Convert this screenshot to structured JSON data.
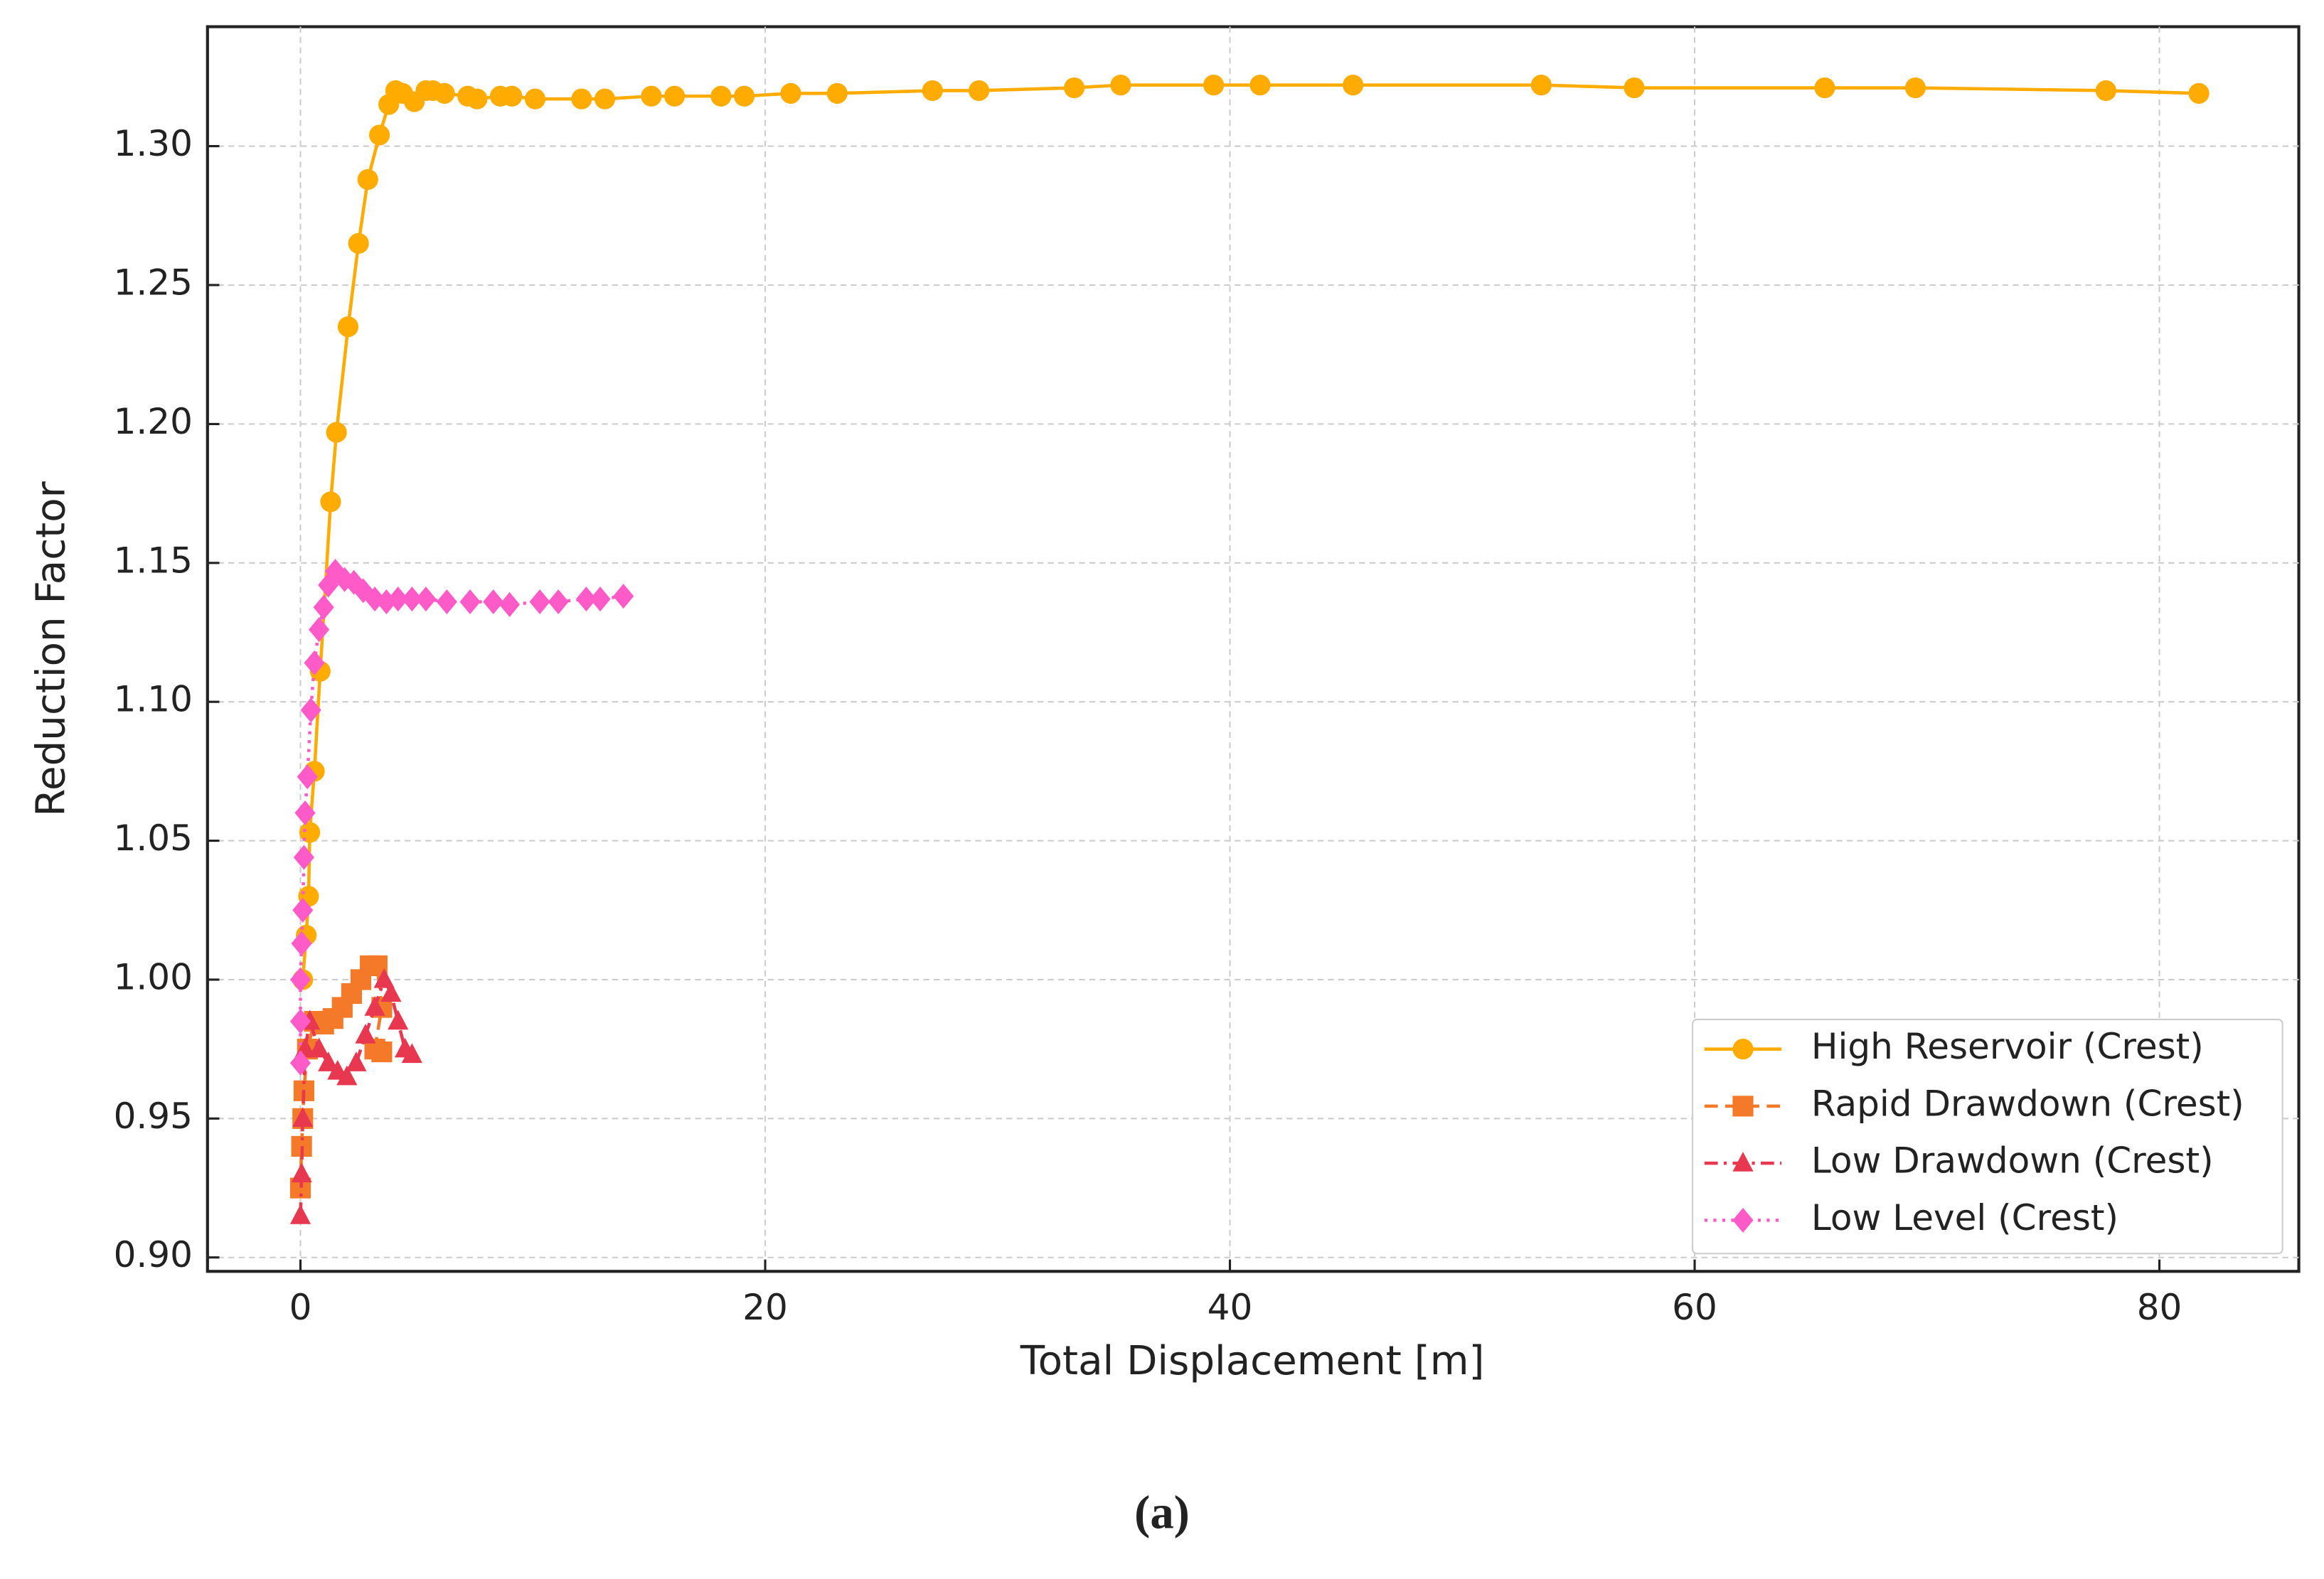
{
  "chart_data": {
    "type": "line",
    "xlabel": "Total Displacement [m]",
    "ylabel": "Reduction Factor",
    "caption": "(a)",
    "xlim": [
      -4,
      86
    ],
    "ylim": [
      0.895,
      1.343
    ],
    "xticks": [
      0,
      20,
      40,
      60,
      80
    ],
    "yticks": [
      {
        "value": 0.9,
        "label": "0.90"
      },
      0.95,
      {
        "value": 1.0,
        "label": "1.00"
      },
      1.05,
      {
        "value": 1.1,
        "label": "1.10"
      },
      1.15,
      {
        "value": 1.2,
        "label": "1.20"
      },
      1.25,
      {
        "value": 1.3,
        "label": "1.30"
      }
    ],
    "grid": true,
    "legend": "lower right",
    "series": [
      {
        "name": "High Reservoir (Crest)",
        "color": "#ffab00",
        "marker": "circle",
        "linestyle": "solid",
        "x": [
          0.1,
          0.25,
          0.35,
          0.4,
          0.6,
          0.85,
          1.3,
          1.55,
          2.05,
          2.5,
          2.9,
          3.4,
          3.8,
          4.1,
          4.4,
          4.9,
          5.4,
          5.7,
          6.2,
          7.2,
          7.6,
          8.6,
          9.1,
          10.1,
          12.1,
          13.1,
          15.1,
          16.1,
          18.1,
          19.1,
          21.1,
          23.1,
          27.2,
          29.2,
          33.3,
          35.3,
          39.3,
          41.3,
          45.3,
          53.4,
          57.4,
          65.6,
          69.5,
          77.7,
          81.7
        ],
        "values": [
          1.0,
          1.016,
          1.03,
          1.053,
          1.075,
          1.111,
          1.172,
          1.197,
          1.235,
          1.265,
          1.288,
          1.304,
          1.315,
          1.32,
          1.319,
          1.316,
          1.32,
          1.32,
          1.319,
          1.318,
          1.317,
          1.318,
          1.318,
          1.317,
          1.317,
          1.317,
          1.318,
          1.318,
          1.318,
          1.318,
          1.319,
          1.319,
          1.32,
          1.32,
          1.321,
          1.322,
          1.322,
          1.322,
          1.322,
          1.322,
          1.321,
          1.321,
          1.321,
          1.32,
          1.319
        ]
      },
      {
        "name": "Rapid Drawdown (Crest)",
        "color": "#f47a2a",
        "marker": "square",
        "linestyle": "dashed",
        "x": [
          0,
          0.05,
          0.1,
          0.15,
          0.3,
          0.6,
          1.0,
          1.4,
          1.8,
          2.2,
          2.6,
          3.0,
          3.3,
          3.5,
          3.2,
          3.5
        ],
        "values": [
          0.925,
          0.94,
          0.95,
          0.96,
          0.975,
          0.985,
          0.984,
          0.986,
          0.99,
          0.995,
          1.0,
          1.005,
          1.005,
          0.99,
          0.975,
          0.974
        ]
      },
      {
        "name": "Low Drawdown (Crest)",
        "color": "#e8384f",
        "marker": "triangle",
        "linestyle": "dashdot",
        "x": [
          0,
          0.05,
          0.1,
          0.2,
          0.4,
          0.8,
          1.2,
          1.6,
          2.0,
          2.4,
          2.8,
          3.2,
          3.6,
          3.9,
          4.2,
          4.5,
          4.8
        ],
        "values": [
          0.915,
          0.93,
          0.95,
          0.975,
          0.985,
          0.975,
          0.97,
          0.967,
          0.965,
          0.97,
          0.98,
          0.99,
          1.0,
          0.995,
          0.985,
          0.975,
          0.973
        ]
      },
      {
        "name": "Low Level (Crest)",
        "color": "#ff5bc8",
        "marker": "diamond",
        "linestyle": "dotted",
        "x": [
          0,
          0,
          0,
          0.05,
          0.1,
          0.15,
          0.2,
          0.3,
          0.45,
          0.6,
          0.8,
          1.0,
          1.2,
          1.5,
          1.9,
          2.3,
          2.7,
          3.2,
          3.7,
          4.2,
          4.8,
          5.4,
          6.3,
          7.3,
          8.3,
          9.0,
          10.3,
          11.1,
          12.3,
          12.9,
          13.9
        ],
        "values": [
          0.97,
          0.985,
          1.0,
          1.013,
          1.025,
          1.044,
          1.06,
          1.073,
          1.097,
          1.114,
          1.126,
          1.134,
          1.142,
          1.147,
          1.144,
          1.143,
          1.14,
          1.137,
          1.136,
          1.137,
          1.137,
          1.137,
          1.136,
          1.136,
          1.136,
          1.135,
          1.136,
          1.136,
          1.137,
          1.137,
          1.138
        ]
      }
    ]
  }
}
